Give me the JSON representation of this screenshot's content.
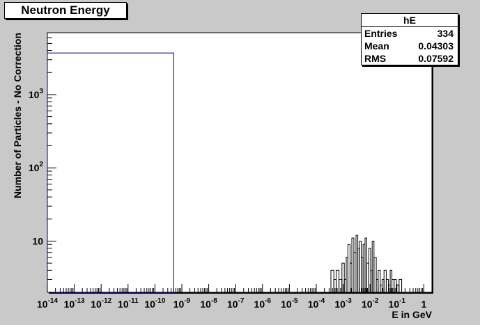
{
  "chart_data": {
    "type": "histogram",
    "title": "Neutron Energy",
    "xlabel": "E in GeV",
    "ylabel": "Number of Particles - No Correction",
    "x_scale": "log",
    "y_scale": "log",
    "xlim": [
      1e-14,
      2
    ],
    "ylim": [
      2,
      7000
    ],
    "x_ticks": [
      {
        "exp": "-14"
      },
      {
        "exp": "-13"
      },
      {
        "exp": "-12"
      },
      {
        "exp": "-11"
      },
      {
        "exp": "-10"
      },
      {
        "exp": "-9"
      },
      {
        "exp": "-8"
      },
      {
        "exp": "-7"
      },
      {
        "exp": "-6"
      },
      {
        "exp": "-5"
      },
      {
        "exp": "-4"
      },
      {
        "exp": "-3"
      },
      {
        "exp": "-2"
      },
      {
        "exp": "-1"
      },
      {
        "exp": "",
        "label": "1"
      }
    ],
    "y_ticks": [
      {
        "base": "10",
        "exp": "3"
      },
      {
        "base": "10",
        "exp": "2"
      },
      {
        "base": "10",
        "exp": ""
      }
    ],
    "series": [
      {
        "color": "#00008b",
        "bins": [
          {
            "x0": 1e-14,
            "x1": 5e-10,
            "y": 3700
          }
        ]
      },
      {
        "color": "#000000",
        "bins": [
          {
            "x0": 0.00035,
            "x1": 0.00045,
            "y": 4
          },
          {
            "x0": 0.00045,
            "x1": 0.00055,
            "y": 3
          },
          {
            "x0": 0.00055,
            "x1": 0.0007,
            "y": 4
          },
          {
            "x0": 0.0007,
            "x1": 0.0009,
            "y": 3
          },
          {
            "x0": 0.0009,
            "x1": 0.0011,
            "y": 5
          },
          {
            "x0": 0.0011,
            "x1": 0.0013,
            "y": 3
          },
          {
            "x0": 0.0013,
            "x1": 0.0015,
            "y": 6
          },
          {
            "x0": 0.0015,
            "x1": 0.0018,
            "y": 9
          },
          {
            "x0": 0.0018,
            "x1": 0.0021,
            "y": 5
          },
          {
            "x0": 0.0021,
            "x1": 0.0025,
            "y": 11
          },
          {
            "x0": 0.0025,
            "x1": 0.003,
            "y": 7
          },
          {
            "x0": 0.003,
            "x1": 0.0035,
            "y": 12
          },
          {
            "x0": 0.0035,
            "x1": 0.004,
            "y": 8
          },
          {
            "x0": 0.004,
            "x1": 0.0047,
            "y": 10
          },
          {
            "x0": 0.0047,
            "x1": 0.0055,
            "y": 6
          },
          {
            "x0": 0.0055,
            "x1": 0.0065,
            "y": 9
          },
          {
            "x0": 0.0065,
            "x1": 0.0075,
            "y": 11
          },
          {
            "x0": 0.0075,
            "x1": 0.009,
            "y": 5
          },
          {
            "x0": 0.009,
            "x1": 0.0105,
            "y": 8
          },
          {
            "x0": 0.0105,
            "x1": 0.012,
            "y": 4
          },
          {
            "x0": 0.012,
            "x1": 0.014,
            "y": 10
          },
          {
            "x0": 0.014,
            "x1": 0.017,
            "y": 6
          },
          {
            "x0": 0.017,
            "x1": 0.02,
            "y": 3
          },
          {
            "x0": 0.02,
            "x1": 0.024,
            "y": 4
          },
          {
            "x0": 0.024,
            "x1": 0.028,
            "y": 2.5
          },
          {
            "x0": 0.028,
            "x1": 0.033,
            "y": 3
          },
          {
            "x0": 0.033,
            "x1": 0.04,
            "y": 4
          },
          {
            "x0": 0.04,
            "x1": 0.048,
            "y": 3
          },
          {
            "x0": 0.048,
            "x1": 0.056,
            "y": 2.5
          },
          {
            "x0": 0.056,
            "x1": 0.065,
            "y": 4
          },
          {
            "x0": 0.065,
            "x1": 0.078,
            "y": 3
          },
          {
            "x0": 0.078,
            "x1": 0.095,
            "y": 3
          },
          {
            "x0": 0.095,
            "x1": 0.12,
            "y": 2.5
          },
          {
            "x0": 0.12,
            "x1": 0.15,
            "y": 3
          }
        ]
      }
    ],
    "stats": {
      "title": "hE",
      "rows": [
        {
          "label": "Entries",
          "value": "334"
        },
        {
          "label": "Mean",
          "value": "0.04303"
        },
        {
          "label": "RMS",
          "value": "0.07592"
        }
      ]
    }
  }
}
